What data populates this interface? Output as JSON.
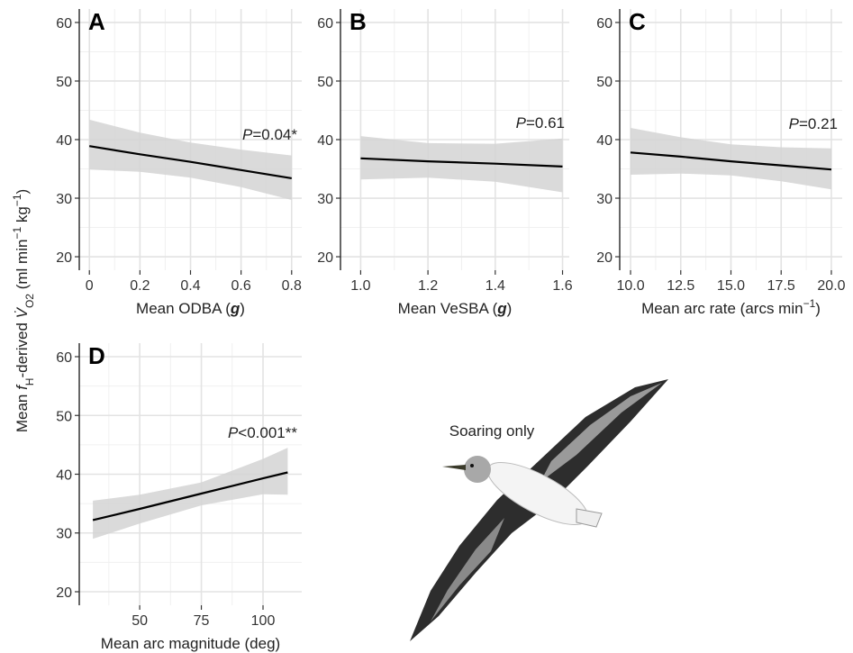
{
  "chart_data": [
    {
      "type": "line",
      "panel": "A",
      "xlabel": [
        {
          "text": "Mean ODBA (",
          "style": "normal"
        },
        {
          "text": "g",
          "style": "bolditalic"
        },
        {
          "text": ")",
          "style": "normal"
        }
      ],
      "annotation": [
        {
          "text": "P",
          "style": "italic"
        },
        {
          "text": "=0.04*",
          "style": "normal"
        }
      ],
      "x": [
        0,
        0.2,
        0.4,
        0.6,
        0.8
      ],
      "values": [
        38.9,
        37.5,
        36.2,
        34.8,
        33.4
      ],
      "ci_upper": [
        43.4,
        41.2,
        39.5,
        38.3,
        37.3
      ],
      "ci_lower": [
        34.9,
        34.5,
        33.5,
        31.9,
        29.7
      ],
      "xlim": [
        -0.04,
        0.84
      ],
      "ylim": [
        17.7,
        62.3
      ],
      "xticks": [
        0,
        0.2,
        0.4,
        0.6,
        0.8
      ],
      "xminor": [
        0.1,
        0.3,
        0.5,
        0.7
      ],
      "yticks": [
        20,
        30,
        40,
        50,
        60
      ],
      "yminor": [
        25,
        35,
        45,
        55
      ],
      "line_color": "#000000",
      "band_color": "#d4d4d4",
      "grid": true
    },
    {
      "type": "line",
      "panel": "B",
      "xlabel": [
        {
          "text": "Mean VeSBA (",
          "style": "normal"
        },
        {
          "text": "g",
          "style": "bolditalic"
        },
        {
          "text": ")",
          "style": "normal"
        }
      ],
      "annotation": [
        {
          "text": "P",
          "style": "italic"
        },
        {
          "text": "=0.61",
          "style": "normal"
        }
      ],
      "x": [
        1,
        1.2,
        1.4,
        1.6
      ],
      "values": [
        36.8,
        36.3,
        35.9,
        35.4
      ],
      "ci_upper": [
        40.6,
        39.4,
        39.3,
        40.2
      ],
      "ci_lower": [
        33.2,
        33.5,
        32.8,
        31.0
      ],
      "xlim": [
        0.94,
        1.62
      ],
      "ylim": [
        17.7,
        62.3
      ],
      "xticks": [
        {
          "value": 1,
          "label": "1.0"
        },
        1.2,
        1.4,
        1.6
      ],
      "xminor": [
        1.1,
        1.3,
        1.5
      ],
      "yticks": [
        20,
        30,
        40,
        50,
        60
      ],
      "yminor": [
        25,
        35,
        45,
        55
      ],
      "line_color": "#000000",
      "band_color": "#d4d4d4",
      "grid": true
    },
    {
      "type": "line",
      "panel": "C",
      "xlabel": [
        {
          "text": "Mean arc rate (arcs min",
          "style": "normal"
        },
        {
          "text": "−1",
          "style": "sup"
        },
        {
          "text": ")",
          "style": "normal"
        }
      ],
      "annotation": [
        {
          "text": "P",
          "style": "italic"
        },
        {
          "text": "=0.21",
          "style": "normal"
        }
      ],
      "x": [
        10,
        12.5,
        15,
        17.5,
        20
      ],
      "values": [
        37.8,
        37.1,
        36.3,
        35.6,
        34.9
      ],
      "ci_upper": [
        42.0,
        40.4,
        39.2,
        38.7,
        38.5
      ],
      "ci_lower": [
        34.0,
        34.2,
        33.9,
        32.9,
        31.5
      ],
      "xlim": [
        9.46,
        20.54
      ],
      "ylim": [
        17.7,
        62.3
      ],
      "xticks": [
        {
          "value": 10,
          "label": "10.0"
        },
        12.5,
        {
          "value": 15,
          "label": "15.0"
        },
        17.5,
        {
          "value": 20,
          "label": "20.0"
        }
      ],
      "xminor": [
        11.25,
        13.75,
        16.25,
        18.75
      ],
      "yticks": [
        20,
        30,
        40,
        50,
        60
      ],
      "yminor": [
        25,
        35,
        45,
        55
      ],
      "line_color": "#000000",
      "band_color": "#d4d4d4",
      "grid": true
    },
    {
      "type": "line",
      "panel": "D",
      "xlabel": [
        {
          "text": "Mean arc magnitude (deg)",
          "style": "normal"
        }
      ],
      "annotation": [
        {
          "text": "P",
          "style": "italic"
        },
        {
          "text": "<0.001**",
          "style": "normal"
        }
      ],
      "x": [
        31,
        50,
        75,
        100,
        110
      ],
      "values": [
        32.2,
        34.1,
        36.7,
        39.3,
        40.3
      ],
      "ci_upper": [
        35.5,
        36.5,
        38.6,
        42.6,
        44.5
      ],
      "ci_lower": [
        29.0,
        31.6,
        34.7,
        36.6,
        36.5
      ],
      "xlim": [
        25.5,
        115.7
      ],
      "ylim": [
        17.7,
        62.3
      ],
      "xticks": [
        50,
        75,
        100
      ],
      "xminor": [
        37.5,
        62.5,
        87.5
      ],
      "yticks": [
        20,
        30,
        40,
        50,
        60
      ],
      "yminor": [
        25,
        35,
        45,
        55
      ],
      "line_color": "#000000",
      "band_color": "#d4d4d4",
      "grid": true
    }
  ],
  "shared_ylabel": [
    {
      "text": "Mean ",
      "style": "normal"
    },
    {
      "text": "f",
      "style": "italic"
    },
    {
      "text": "H",
      "style": "sub"
    },
    {
      "text": "-derived ",
      "style": "normal"
    },
    {
      "text": "V̇",
      "style": "italic"
    },
    {
      "text": "O2",
      "style": "sub"
    },
    {
      "text": " (ml min",
      "style": "normal"
    },
    {
      "text": "−1",
      "style": "sup"
    },
    {
      "text": " kg",
      "style": "normal"
    },
    {
      "text": "−1",
      "style": "sup"
    },
    {
      "text": ")",
      "style": "normal"
    }
  ],
  "image_caption": "Soaring only"
}
